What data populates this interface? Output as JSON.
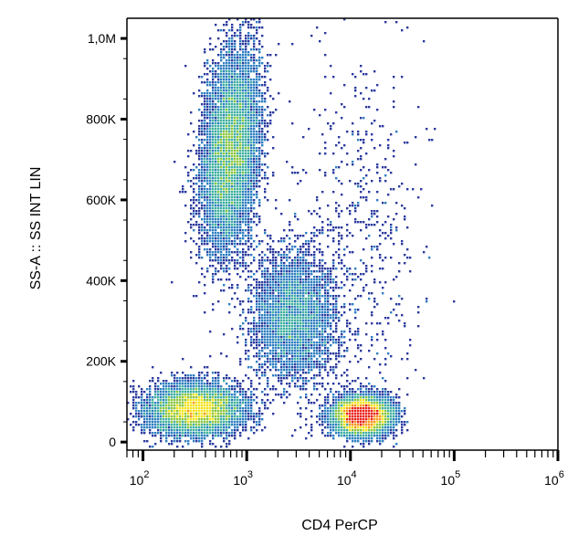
{
  "chart_data": {
    "type": "scatter",
    "title": "",
    "xlabel": "CD4 PerCP",
    "ylabel": "SS-A :: SS INT LIN",
    "x_scale": "log",
    "y_scale": "linear",
    "xlim": [
      70,
      1000000
    ],
    "ylim": [
      -20000,
      1050000
    ],
    "grid": false,
    "legend": "none",
    "x_ticks": [
      {
        "value": 100,
        "base": "10",
        "exp": "2"
      },
      {
        "value": 1000,
        "base": "10",
        "exp": "3"
      },
      {
        "value": 10000,
        "base": "10",
        "exp": "4"
      },
      {
        "value": 100000,
        "base": "10",
        "exp": "5"
      },
      {
        "value": 1000000,
        "base": "10",
        "exp": "6"
      }
    ],
    "y_ticks": [
      {
        "value": 0,
        "label": "0"
      },
      {
        "value": 200000,
        "label": "200K"
      },
      {
        "value": 400000,
        "label": "400K"
      },
      {
        "value": 600000,
        "label": "600K"
      },
      {
        "value": 800000,
        "label": "800K"
      },
      {
        "value": 1000000,
        "label": "1,0M"
      }
    ],
    "density_colors": [
      "#2b3a9e",
      "#2f7fc1",
      "#3fb0a0",
      "#8cc63f",
      "#f2e41c",
      "#f7941d",
      "#e8231d"
    ],
    "populations": [
      {
        "x_center": 700,
        "x_spread_decades": 0.13,
        "y_center": 720000,
        "y_spread": 120000,
        "tilt": 0.28,
        "density": 1.0
      },
      {
        "x_center": 320,
        "x_spread_decades": 0.22,
        "y_center": 80000,
        "y_spread": 30000,
        "tilt": 0.0,
        "density": 0.9
      },
      {
        "x_center": 13000,
        "x_spread_decades": 0.13,
        "y_center": 65000,
        "y_spread": 22000,
        "tilt": 0.0,
        "density": 1.0
      },
      {
        "x_center": 2800,
        "x_spread_decades": 0.2,
        "y_center": 310000,
        "y_spread": 80000,
        "tilt": 0.0,
        "density": 0.45
      },
      {
        "x_center": 12000,
        "x_spread_decades": 0.3,
        "y_center": 420000,
        "y_spread": 280000,
        "tilt": 0.0,
        "density": 0.08
      }
    ]
  }
}
